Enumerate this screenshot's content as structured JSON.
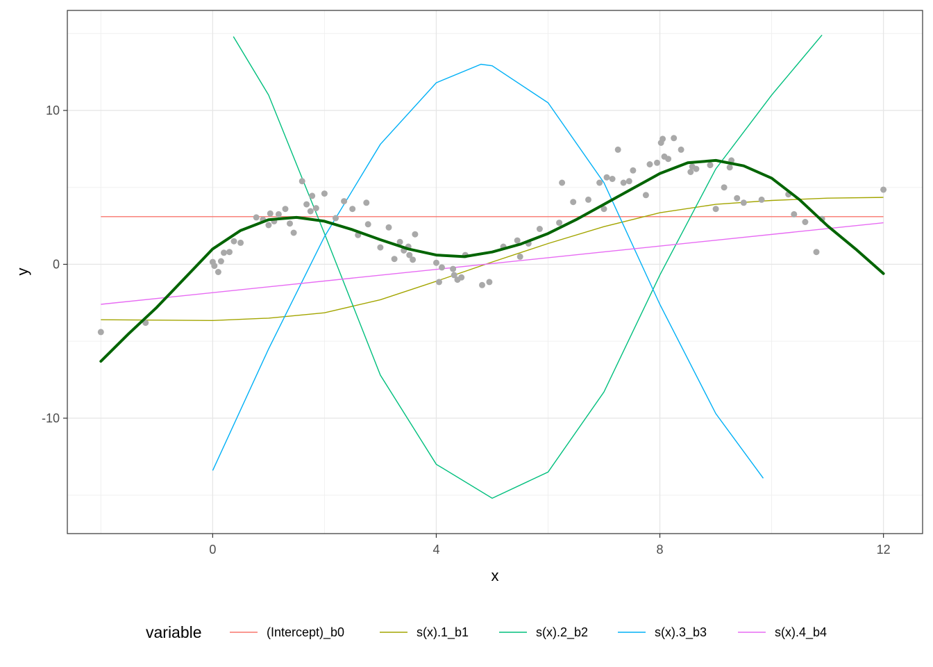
{
  "chart_data": {
    "type": "line",
    "xlabel": "x",
    "ylabel": "y",
    "xlim": [
      -2.6,
      12.7
    ],
    "ylim": [
      -17.5,
      16.5
    ],
    "x_ticks": [
      0,
      4,
      8,
      12
    ],
    "x_tick_labels": [
      "0",
      "4",
      "8",
      "12"
    ],
    "y_ticks": [
      -10,
      0,
      10
    ],
    "y_tick_labels": [
      "-10",
      "0",
      "10"
    ],
    "x_minor_ticks": [
      -2,
      2,
      6,
      10
    ],
    "y_minor_ticks": [
      -15,
      -5,
      5,
      15
    ],
    "grid": true,
    "legend": {
      "title": "variable",
      "position": "bottom",
      "entries": [
        {
          "label": "(Intercept)_b0",
          "color": "#F8766D"
        },
        {
          "label": "s(x).1_b1",
          "color": "#A3A500"
        },
        {
          "label": "s(x).2_b2",
          "color": "#00BF7D"
        },
        {
          "label": "s(x).3_b3",
          "color": "#00B0F6"
        },
        {
          "label": "s(x).4_b4",
          "color": "#E76BF3"
        }
      ]
    },
    "series": [
      {
        "name": "(Intercept)_b0",
        "color": "#F8766D",
        "x": [
          -2,
          12
        ],
        "y": [
          3.1,
          3.1
        ]
      },
      {
        "name": "s(x).1_b1",
        "color": "#A3A500",
        "x": [
          -2,
          0,
          1,
          2,
          3,
          4,
          5,
          6,
          7,
          8,
          9,
          10,
          11,
          12
        ],
        "y": [
          -3.6,
          -3.65,
          -3.5,
          -3.15,
          -2.3,
          -1.1,
          0.15,
          1.35,
          2.45,
          3.35,
          3.9,
          4.15,
          4.3,
          4.35
        ]
      },
      {
        "name": "s(x).2_b2",
        "color": "#00BF7D",
        "x": [
          0.37,
          1,
          2,
          3,
          4,
          5,
          6,
          7,
          8,
          9,
          10,
          10.9
        ],
        "y": [
          14.8,
          11,
          2,
          -7.2,
          -13,
          -15.2,
          -13.5,
          -8.3,
          -0.7,
          6.2,
          11,
          14.9
        ]
      },
      {
        "name": "s(x).3_b3",
        "color": "#00B0F6",
        "x": [
          0,
          1,
          2,
          3,
          4,
          4.8,
          5,
          6,
          7,
          8,
          9,
          9.85
        ],
        "y": [
          -13.4,
          -5.5,
          1.8,
          7.8,
          11.8,
          13.0,
          12.9,
          10.5,
          5.3,
          -2.6,
          -9.7,
          -13.9
        ]
      },
      {
        "name": "s(x).4_b4",
        "color": "#E76BF3",
        "x": [
          -2,
          12
        ],
        "y": [
          -2.6,
          2.7
        ]
      }
    ],
    "fit": {
      "color": "#006400",
      "x": [
        -2,
        -1.5,
        -1,
        -0.5,
        0,
        0.5,
        1,
        1.5,
        2,
        2.5,
        3,
        3.5,
        4,
        4.5,
        5,
        5.5,
        6,
        6.5,
        7,
        7.5,
        8,
        8.5,
        9,
        9.5,
        10,
        10.5,
        11,
        11.5,
        12
      ],
      "y": [
        -6.3,
        -4.5,
        -2.8,
        -0.9,
        1.0,
        2.2,
        2.9,
        3.05,
        2.8,
        2.25,
        1.6,
        1.0,
        0.6,
        0.5,
        0.8,
        1.3,
        2.0,
        2.9,
        3.9,
        4.9,
        5.9,
        6.6,
        6.75,
        6.4,
        5.6,
        4.2,
        2.5,
        1.0,
        -0.6
      ]
    },
    "points": {
      "color": "#a9a9a9",
      "x": [
        -2,
        -1.2,
        0,
        0.03,
        0.1,
        0.15,
        0.2,
        0.3,
        0.38,
        0.5,
        0.78,
        0.9,
        1.0,
        1.03,
        1.1,
        1.18,
        1.3,
        1.38,
        1.45,
        1.6,
        1.68,
        1.75,
        1.78,
        1.85,
        2.0,
        2.2,
        2.35,
        2.5,
        2.6,
        2.75,
        2.78,
        3.0,
        3.15,
        3.25,
        3.35,
        3.42,
        3.5,
        3.52,
        3.58,
        3.62,
        4.0,
        4.05,
        4.1,
        4.3,
        4.32,
        4.38,
        4.45,
        4.52,
        4.82,
        4.95,
        5.2,
        5.45,
        5.5,
        5.65,
        5.85,
        6.2,
        6.25,
        6.45,
        6.72,
        6.92,
        7.0,
        7.05,
        7.15,
        7.25,
        7.35,
        7.45,
        7.52,
        7.75,
        7.82,
        7.95,
        8.02,
        8.05,
        8.08,
        8.15,
        8.25,
        8.38,
        8.55,
        8.58,
        8.65,
        8.9,
        9.0,
        9.15,
        9.25,
        9.28,
        9.38,
        9.5,
        9.82,
        10.3,
        10.4,
        10.6,
        10.8,
        10.9,
        12.0
      ],
      "y": [
        -4.4,
        -3.8,
        0.15,
        -0.1,
        -0.5,
        0.2,
        0.75,
        0.8,
        1.5,
        1.4,
        3.05,
        2.9,
        2.55,
        3.3,
        2.8,
        3.25,
        3.6,
        2.65,
        2.05,
        5.4,
        3.9,
        3.45,
        4.45,
        3.65,
        4.6,
        3.0,
        4.1,
        3.6,
        1.9,
        4.0,
        2.6,
        1.1,
        2.4,
        0.35,
        1.45,
        0.9,
        1.15,
        0.6,
        0.3,
        1.95,
        0.1,
        -1.15,
        -0.2,
        -0.3,
        -0.7,
        -1.0,
        -0.85,
        0.6,
        -1.35,
        -1.15,
        1.15,
        1.55,
        0.5,
        1.35,
        2.3,
        2.7,
        5.3,
        4.05,
        4.2,
        5.3,
        3.6,
        5.65,
        5.55,
        7.45,
        5.3,
        5.4,
        6.1,
        4.5,
        6.5,
        6.6,
        7.9,
        8.15,
        7.0,
        6.85,
        8.2,
        7.45,
        6.0,
        6.35,
        6.2,
        6.45,
        3.6,
        5.0,
        6.3,
        6.75,
        4.3,
        4.0,
        4.2,
        4.55,
        3.25,
        2.75,
        0.8,
        2.95,
        4.85
      ]
    }
  }
}
